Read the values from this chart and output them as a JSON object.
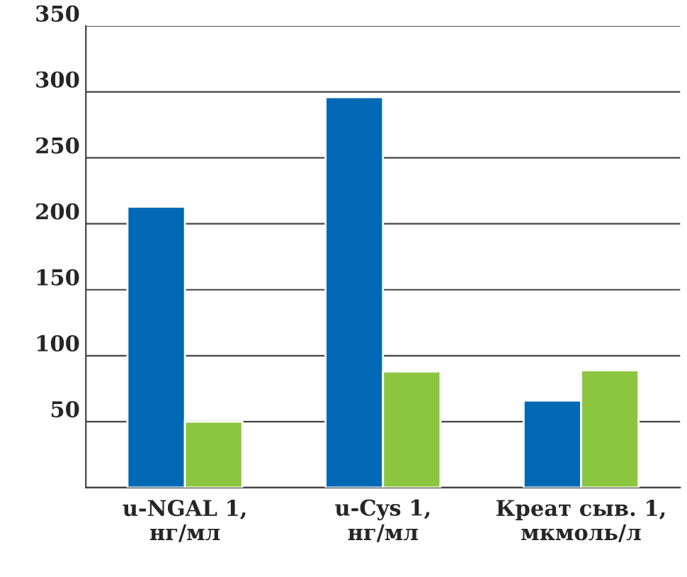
{
  "chart_data": {
    "type": "bar",
    "categories": [
      "u-NGAL 1,\nнг/мл",
      "u-Cys 1,\nнг/мл",
      "Креат сыв. 1,\nмкмоль/л"
    ],
    "series": [
      {
        "color": "#0068b4",
        "values": [
          213,
          296,
          66
        ]
      },
      {
        "color": "#8cc63e",
        "values": [
          50,
          88,
          89
        ]
      }
    ],
    "ylim": [
      0,
      350
    ],
    "yticks": [
      {
        "value": 0,
        "label": null
      },
      50,
      100,
      150,
      200,
      250,
      300,
      350
    ],
    "grid": "y",
    "legend": false
  }
}
